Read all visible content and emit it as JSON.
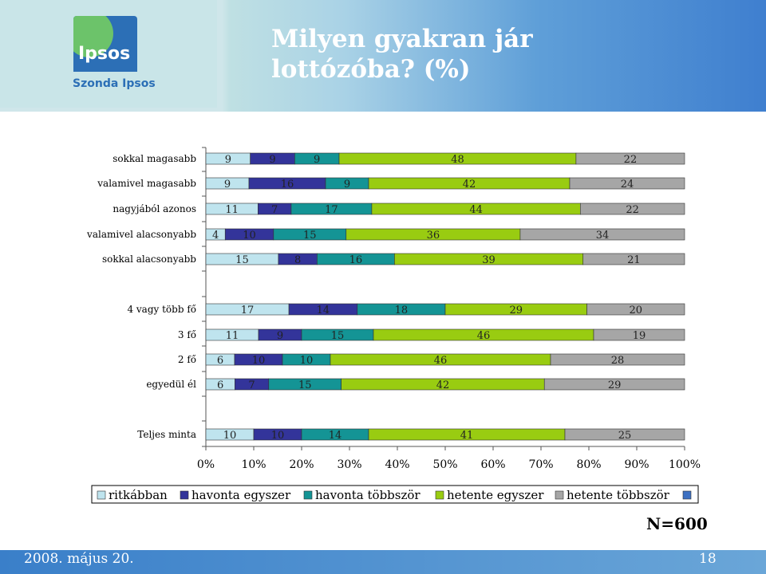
{
  "header": {
    "logo_text": "Ipsos",
    "logo_subtext": "Szonda Ipsos",
    "title": "Milyen gyakran jár lottózóba? (%)"
  },
  "sample_size": "N=600",
  "footer": {
    "date": "2008. május 20.",
    "page": "18"
  },
  "chart_data": {
    "type": "bar",
    "stacked": true,
    "orientation": "horizontal",
    "categories": [
      "sokkal magasabb",
      "valamivel magasabb",
      "nagyjából azonos",
      "valamivel alacsonyabb",
      "sokkal alacsonyabb",
      "4 vagy több fő",
      "3 fő",
      "2 fő",
      "egyedül él",
      "Teljes minta"
    ],
    "series": [
      {
        "name": "ritkábban",
        "color": "#bfe4ee",
        "values": [
          9,
          9,
          11,
          4,
          15,
          17,
          11,
          6,
          6,
          10
        ]
      },
      {
        "name": "havonta egyszer",
        "color": "#33349a",
        "values": [
          9,
          16,
          7,
          10,
          8,
          14,
          9,
          10,
          7,
          10
        ]
      },
      {
        "name": "havonta többször",
        "color": "#149495",
        "values": [
          9,
          9,
          17,
          15,
          16,
          18,
          15,
          10,
          15,
          14
        ]
      },
      {
        "name": "hetente egyszer",
        "color": "#99cc11",
        "values": [
          48,
          42,
          44,
          36,
          39,
          29,
          46,
          46,
          42,
          41
        ]
      },
      {
        "name": "hetente többször",
        "color": "#a6a6a6",
        "values": [
          22,
          24,
          22,
          34,
          21,
          20,
          19,
          28,
          29,
          25
        ]
      }
    ],
    "xticks": [
      "0%",
      "10%",
      "20%",
      "30%",
      "40%",
      "50%",
      "60%",
      "70%",
      "80%",
      "90%",
      "100%"
    ],
    "xlim": [
      0,
      100
    ],
    "legend_position": "bottom"
  }
}
